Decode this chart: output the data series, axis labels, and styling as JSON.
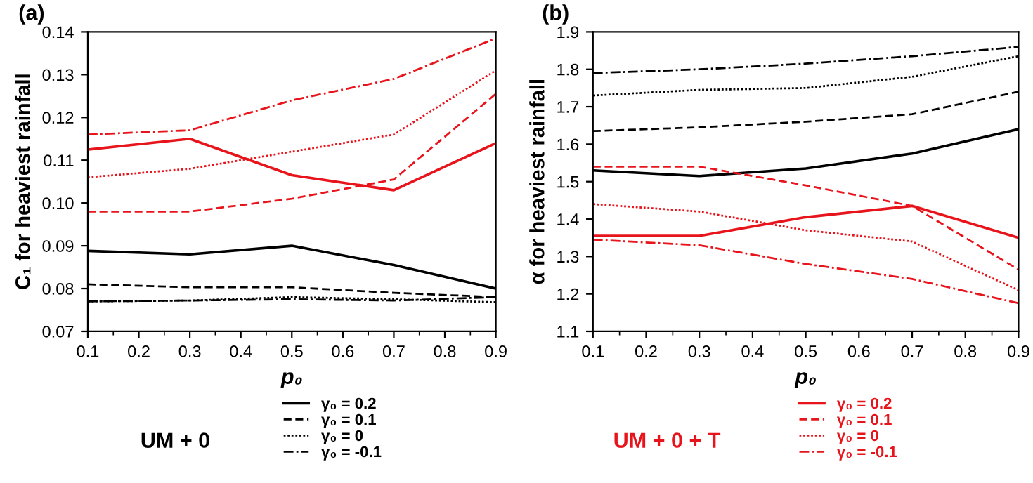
{
  "chart_data": [
    {
      "type": "line",
      "title": "(a)",
      "xlabel": "p₀",
      "ylabel": "C₁ for heaviest rainfall",
      "legend_title": "UM + 0",
      "legend": "bottom",
      "grid": false,
      "marker": "none",
      "x": [
        0.1,
        0.3,
        0.5,
        0.7,
        0.9
      ],
      "xlim": [
        0.1,
        0.9
      ],
      "xticks": [
        0.1,
        0.2,
        0.3,
        0.4,
        0.5,
        0.6,
        0.7,
        0.8,
        0.9
      ],
      "ylim": [
        0.07,
        0.14
      ],
      "yticks": [
        0.07,
        0.08,
        0.09,
        {
          "value": 0.1,
          "label": "0.10"
        },
        0.11,
        0.12,
        0.13,
        0.14
      ],
      "series": [
        {
          "name": "γ₀ = 0.2",
          "color": "#000000",
          "line_style": "solid",
          "values": [
            0.0888,
            0.088,
            0.09,
            0.0855,
            0.08
          ]
        },
        {
          "name": "γ₀ = 0.1",
          "color": "#000000",
          "line_style": "dashed",
          "values": [
            0.081,
            0.0803,
            0.0803,
            0.079,
            0.078
          ]
        },
        {
          "name": "γ₀ = 0",
          "color": "#000000",
          "line_style": "dotted",
          "values": [
            0.077,
            0.0772,
            0.078,
            0.0775,
            0.0768
          ]
        },
        {
          "name": "γ₀ = -0.1",
          "color": "#000000",
          "line_style": "dashdot",
          "values": [
            0.077,
            0.0772,
            0.0775,
            0.0772,
            0.078
          ]
        },
        {
          "color": "#e8141b",
          "line_style": "solid",
          "values": [
            0.1125,
            0.115,
            0.1065,
            0.103,
            0.114
          ]
        },
        {
          "color": "#e8141b",
          "line_style": "dashed",
          "values": [
            0.098,
            0.098,
            0.101,
            0.1055,
            0.1255
          ]
        },
        {
          "color": "#e8141b",
          "line_style": "dotted",
          "values": [
            0.106,
            0.108,
            0.112,
            0.116,
            0.131
          ]
        },
        {
          "color": "#e8141b",
          "line_style": "dashdot",
          "values": [
            0.116,
            0.117,
            0.124,
            0.129,
            0.1385
          ]
        }
      ]
    },
    {
      "type": "line",
      "title": "(b)",
      "xlabel": "p₀",
      "ylabel": "α for heaviest rainfall",
      "legend_title": "UM + 0 + T",
      "legend": "bottom",
      "grid": false,
      "marker": "none",
      "x": [
        0.1,
        0.3,
        0.5,
        0.7,
        0.9
      ],
      "xlim": [
        0.1,
        0.9
      ],
      "xticks": [
        0.1,
        0.2,
        0.3,
        0.4,
        0.5,
        0.6,
        0.7,
        0.8,
        0.9
      ],
      "ylim": [
        1.1,
        1.9
      ],
      "yticks": [
        1.1,
        1.2,
        1.3,
        1.4,
        1.5,
        1.6,
        1.7,
        1.8,
        1.9
      ],
      "series": [
        {
          "color": "#000000",
          "line_style": "solid",
          "values": [
            1.53,
            1.515,
            1.535,
            1.575,
            1.64
          ]
        },
        {
          "color": "#000000",
          "line_style": "dashed",
          "values": [
            1.635,
            1.645,
            1.66,
            1.68,
            1.74
          ]
        },
        {
          "color": "#000000",
          "line_style": "dotted",
          "values": [
            1.73,
            1.745,
            1.75,
            1.78,
            1.835
          ]
        },
        {
          "color": "#000000",
          "line_style": "dashdot",
          "values": [
            1.79,
            1.8,
            1.815,
            1.835,
            1.86
          ]
        },
        {
          "name": "γ₀ = 0.2",
          "color": "#e8141b",
          "line_style": "solid",
          "values": [
            1.355,
            1.355,
            1.405,
            1.435,
            1.35
          ]
        },
        {
          "name": "γ₀ = 0.1",
          "color": "#e8141b",
          "line_style": "dashed",
          "values": [
            1.54,
            1.54,
            1.49,
            1.435,
            1.265
          ]
        },
        {
          "name": "γ₀ = 0",
          "color": "#e8141b",
          "line_style": "dotted",
          "values": [
            1.44,
            1.42,
            1.37,
            1.34,
            1.21
          ]
        },
        {
          "name": "γ₀ = -0.1",
          "color": "#e8141b",
          "line_style": "dashdot",
          "values": [
            1.345,
            1.33,
            1.28,
            1.24,
            1.175
          ]
        }
      ]
    }
  ]
}
